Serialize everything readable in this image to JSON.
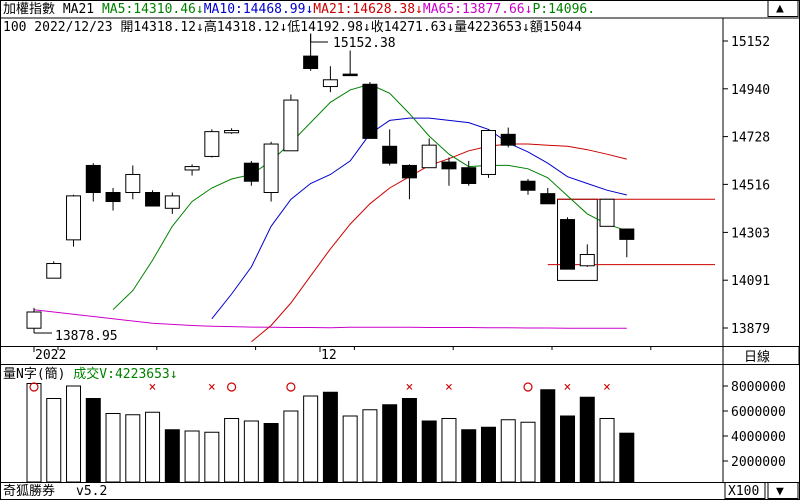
{
  "app": {
    "name": "奇狐勝券",
    "version": "v5.2"
  },
  "header": {
    "line1": [
      {
        "text": "加權指數 MA21 ",
        "color": "#000000"
      },
      {
        "text": "MA5:14310.46↓",
        "color": "#008000"
      },
      {
        "text": "MA10:14468.99↓",
        "color": "#0000cc"
      },
      {
        "text": "MA21:14628.38↓",
        "color": "#cc0000"
      },
      {
        "text": "MA65:13877.66↓",
        "color": "#cc00cc"
      },
      {
        "text": "P:14096.",
        "color": "#008000"
      }
    ],
    "line2": "100 2022/12/23 開14318.12↓高14318.12↓低14192.98↓收14271.63↓量4223653↓額15044"
  },
  "price_axis": {
    "ticks": [
      "15152",
      "14940",
      "14728",
      "14516",
      "14303",
      "14091",
      "13879"
    ]
  },
  "date_axis": {
    "labels": [
      "2022",
      "12"
    ]
  },
  "price_annotations": {
    "high": "15152.38",
    "low": "13878.95"
  },
  "volume_header": [
    {
      "text": "量N字(簡)",
      "color": "#000000"
    },
    {
      "text": "成交V:4223653↓",
      "color": "#008000"
    }
  ],
  "volume_axis": {
    "ticks": [
      "8000000",
      "6000000",
      "4000000",
      "2000000"
    ]
  },
  "period_button": {
    "label": "日線"
  },
  "zoom_button": {
    "label": "X100"
  },
  "scrollbar": {
    "up_label": "▲",
    "down_label": "▼"
  },
  "colors": {
    "up": "#ffffff",
    "down": "#000000",
    "ma5": "#008000",
    "ma10": "#0000cc",
    "ma21": "#cc0000",
    "ma65": "#cc00cc",
    "signal_x": "#cc0000",
    "signal_o": "#cc0000"
  },
  "chart_data": [
    {
      "type": "candlestick",
      "title": "加權指數",
      "y_range": [
        13800,
        15200
      ],
      "candles": [
        {
          "o": 13878,
          "h": 13968,
          "l": 13860,
          "c": 13950
        },
        {
          "o": 14100,
          "h": 14175,
          "l": 14100,
          "c": 14165
        },
        {
          "o": 14270,
          "h": 14470,
          "l": 14240,
          "c": 14465
        },
        {
          "o": 14600,
          "h": 14610,
          "l": 14440,
          "c": 14480
        },
        {
          "o": 14480,
          "h": 14500,
          "l": 14400,
          "c": 14440
        },
        {
          "o": 14480,
          "h": 14600,
          "l": 14450,
          "c": 14560
        },
        {
          "o": 14480,
          "h": 14490,
          "l": 14420,
          "c": 14420
        },
        {
          "o": 14410,
          "h": 14480,
          "l": 14385,
          "c": 14465
        },
        {
          "o": 14580,
          "h": 14605,
          "l": 14555,
          "c": 14595
        },
        {
          "o": 14640,
          "h": 14760,
          "l": 14635,
          "c": 14750
        },
        {
          "o": 14745,
          "h": 14765,
          "l": 14740,
          "c": 14755
        },
        {
          "o": 14610,
          "h": 14620,
          "l": 14510,
          "c": 14530
        },
        {
          "o": 14480,
          "h": 14705,
          "l": 14440,
          "c": 14695
        },
        {
          "o": 14665,
          "h": 14915,
          "l": 14665,
          "c": 14890
        },
        {
          "o": 15085,
          "h": 15185,
          "l": 15020,
          "c": 15030
        },
        {
          "o": 14950,
          "h": 15040,
          "l": 14925,
          "c": 14980
        },
        {
          "o": 15005,
          "h": 15110,
          "l": 14998,
          "c": 15002
        },
        {
          "o": 14960,
          "h": 14970,
          "l": 14720,
          "c": 14720
        },
        {
          "o": 14685,
          "h": 14760,
          "l": 14600,
          "c": 14610
        },
        {
          "o": 14600,
          "h": 14605,
          "l": 14450,
          "c": 14545
        },
        {
          "o": 14590,
          "h": 14720,
          "l": 14590,
          "c": 14690
        },
        {
          "o": 14615,
          "h": 14635,
          "l": 14510,
          "c": 14585
        },
        {
          "o": 14590,
          "h": 14620,
          "l": 14510,
          "c": 14520
        },
        {
          "o": 14560,
          "h": 14760,
          "l": 14545,
          "c": 14755
        },
        {
          "o": 14738,
          "h": 14768,
          "l": 14680,
          "c": 14690
        },
        {
          "o": 14530,
          "h": 14540,
          "l": 14470,
          "c": 14490
        },
        {
          "o": 14475,
          "h": 14500,
          "l": 14440,
          "c": 14430
        },
        {
          "o": 14360,
          "h": 14370,
          "l": 14140,
          "c": 14140
        },
        {
          "o": 14155,
          "h": 14250,
          "l": 14150,
          "c": 14205
        },
        {
          "o": 14330,
          "h": 14450,
          "l": 14330,
          "c": 14450
        },
        {
          "o": 14318,
          "h": 14318,
          "l": 14193,
          "c": 14272
        }
      ],
      "ma5": [
        null,
        null,
        null,
        null,
        13960,
        14045,
        14180,
        14330,
        14440,
        14500,
        14540,
        14560,
        14620,
        14700,
        14790,
        14880,
        14935,
        14960,
        14920,
        14830,
        14730,
        14650,
        14595,
        14600,
        14600,
        14585,
        14545,
        14465,
        14385,
        14340,
        14310
      ],
      "ma10": [
        null,
        null,
        null,
        null,
        null,
        null,
        null,
        null,
        null,
        13920,
        14030,
        14150,
        14330,
        14450,
        14520,
        14560,
        14620,
        14740,
        14800,
        14810,
        14810,
        14800,
        14790,
        14760,
        14700,
        14660,
        14610,
        14550,
        14520,
        14490,
        14469
      ],
      "ma21": [
        null,
        null,
        null,
        null,
        null,
        null,
        null,
        null,
        null,
        null,
        null,
        13818,
        13890,
        13990,
        14110,
        14230,
        14340,
        14430,
        14500,
        14550,
        14600,
        14630,
        14665,
        14685,
        14695,
        14695,
        14690,
        14685,
        14670,
        14650,
        14628
      ],
      "ma65": [
        13960,
        13950,
        13940,
        13930,
        13920,
        13910,
        13900,
        13895,
        13890,
        13887,
        13885,
        13883,
        13882,
        13881,
        13881,
        13880,
        13882,
        13882,
        13882,
        13882,
        13881,
        13881,
        13881,
        13880,
        13880,
        13879,
        13879,
        13878,
        13878,
        13878,
        13878
      ],
      "box": {
        "first_candle": 27,
        "last_candle": 28,
        "top": 14450,
        "bottom": 14090
      },
      "levels": [
        14450,
        14160
      ]
    },
    {
      "type": "bar",
      "title": "成交V",
      "y_range": [
        0,
        9000000
      ],
      "values": [
        8200000,
        7000000,
        8000000,
        7000000,
        5800000,
        5700000,
        5900000,
        4500000,
        4400000,
        4300000,
        5400000,
        5200000,
        5000000,
        6000000,
        7200000,
        7500000,
        5600000,
        6100000,
        6500000,
        7000000,
        5200000,
        5400000,
        4500000,
        4700000,
        5300000,
        5100000,
        7700000,
        5600000,
        7100000,
        5400000,
        4223653
      ],
      "colors": [
        "up",
        "up",
        "up",
        "down",
        "up",
        "up",
        "up",
        "down",
        "up",
        "up",
        "up",
        "up",
        "down",
        "up",
        "up",
        "down",
        "up",
        "up",
        "down",
        "down",
        "down",
        "up",
        "down",
        "down",
        "up",
        "up",
        "down",
        "down",
        "down",
        "up",
        "down"
      ],
      "signals": [
        "o",
        null,
        null,
        null,
        null,
        null,
        "x",
        null,
        null,
        "x",
        "o",
        null,
        null,
        "o",
        null,
        null,
        null,
        null,
        null,
        "x",
        null,
        "x",
        null,
        null,
        null,
        "o",
        null,
        "x",
        null,
        "x",
        null
      ]
    }
  ]
}
